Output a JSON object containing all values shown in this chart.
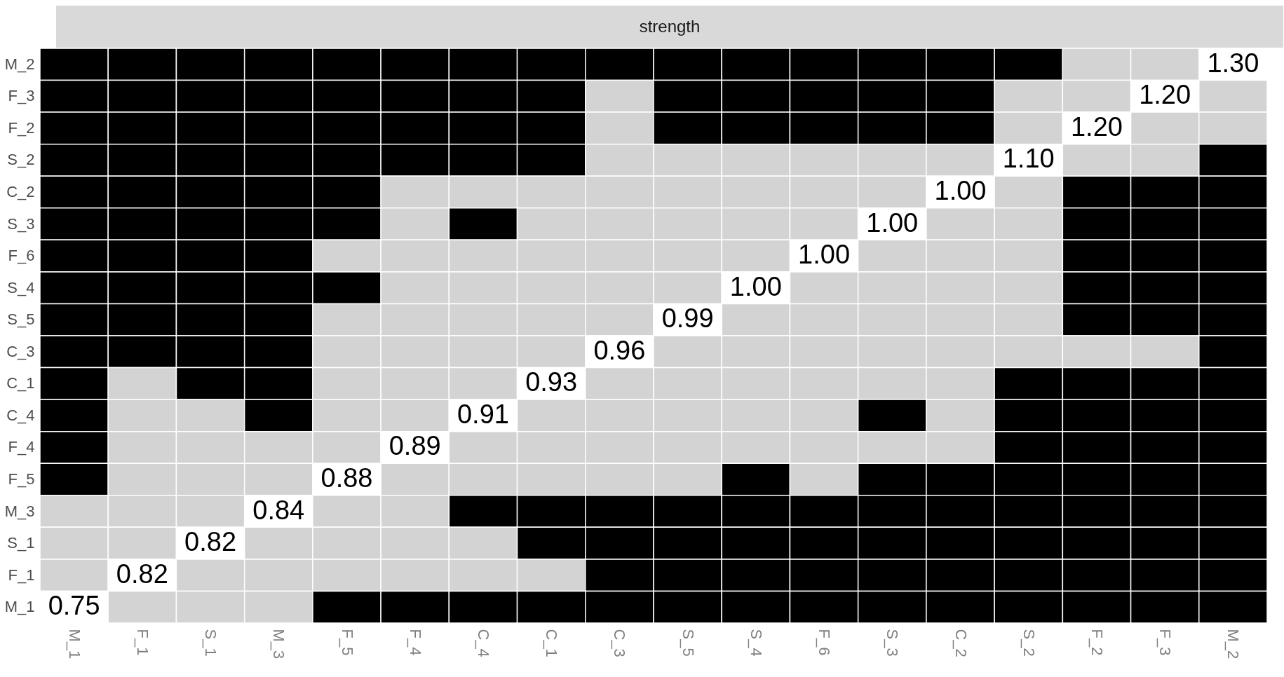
{
  "chart_data": {
    "type": "heatmap",
    "title": "strength",
    "categories": [
      "M_1",
      "F_1",
      "S_1",
      "M_3",
      "F_5",
      "F_4",
      "C_4",
      "C_1",
      "C_3",
      "S_5",
      "S_4",
      "F_6",
      "S_3",
      "C_2",
      "S_2",
      "F_2",
      "F_3",
      "M_2"
    ],
    "y_categories": [
      "M_2",
      "F_3",
      "F_2",
      "S_2",
      "C_2",
      "S_3",
      "F_6",
      "S_4",
      "S_5",
      "C_3",
      "C_1",
      "C_4",
      "F_4",
      "F_5",
      "M_3",
      "S_1",
      "F_1",
      "M_1"
    ],
    "colors": [
      [
        "#000000",
        "#000000",
        "#000000",
        "#000000",
        "#000000",
        "#000000",
        "#000000",
        "#000000",
        "#000000",
        "#000000",
        "#000000",
        "#000000",
        "#000000",
        "#000000",
        "#000000",
        "#d3d3d3",
        "#d3d3d3",
        "#ffffff"
      ],
      [
        "#000000",
        "#000000",
        "#000000",
        "#000000",
        "#000000",
        "#000000",
        "#000000",
        "#000000",
        "#d3d3d3",
        "#000000",
        "#000000",
        "#000000",
        "#000000",
        "#000000",
        "#d3d3d3",
        "#d3d3d3",
        "#ffffff",
        "#d3d3d3"
      ],
      [
        "#000000",
        "#000000",
        "#000000",
        "#000000",
        "#000000",
        "#000000",
        "#000000",
        "#000000",
        "#d3d3d3",
        "#000000",
        "#000000",
        "#000000",
        "#000000",
        "#000000",
        "#d3d3d3",
        "#ffffff",
        "#d3d3d3",
        "#d3d3d3"
      ],
      [
        "#000000",
        "#000000",
        "#000000",
        "#000000",
        "#000000",
        "#000000",
        "#000000",
        "#000000",
        "#d3d3d3",
        "#d3d3d3",
        "#d3d3d3",
        "#d3d3d3",
        "#d3d3d3",
        "#d3d3d3",
        "#ffffff",
        "#d3d3d3",
        "#d3d3d3",
        "#000000"
      ],
      [
        "#000000",
        "#000000",
        "#000000",
        "#000000",
        "#000000",
        "#d3d3d3",
        "#d3d3d3",
        "#d3d3d3",
        "#d3d3d3",
        "#d3d3d3",
        "#d3d3d3",
        "#d3d3d3",
        "#d3d3d3",
        "#ffffff",
        "#d3d3d3",
        "#000000",
        "#000000",
        "#000000"
      ],
      [
        "#000000",
        "#000000",
        "#000000",
        "#000000",
        "#000000",
        "#d3d3d3",
        "#000000",
        "#d3d3d3",
        "#d3d3d3",
        "#d3d3d3",
        "#d3d3d3",
        "#d3d3d3",
        "#ffffff",
        "#d3d3d3",
        "#d3d3d3",
        "#000000",
        "#000000",
        "#000000"
      ],
      [
        "#000000",
        "#000000",
        "#000000",
        "#000000",
        "#d3d3d3",
        "#d3d3d3",
        "#d3d3d3",
        "#d3d3d3",
        "#d3d3d3",
        "#d3d3d3",
        "#d3d3d3",
        "#ffffff",
        "#d3d3d3",
        "#d3d3d3",
        "#d3d3d3",
        "#000000",
        "#000000",
        "#000000"
      ],
      [
        "#000000",
        "#000000",
        "#000000",
        "#000000",
        "#000000",
        "#d3d3d3",
        "#d3d3d3",
        "#d3d3d3",
        "#d3d3d3",
        "#d3d3d3",
        "#ffffff",
        "#d3d3d3",
        "#d3d3d3",
        "#d3d3d3",
        "#d3d3d3",
        "#000000",
        "#000000",
        "#000000"
      ],
      [
        "#000000",
        "#000000",
        "#000000",
        "#000000",
        "#d3d3d3",
        "#d3d3d3",
        "#d3d3d3",
        "#d3d3d3",
        "#d3d3d3",
        "#ffffff",
        "#d3d3d3",
        "#d3d3d3",
        "#d3d3d3",
        "#d3d3d3",
        "#d3d3d3",
        "#000000",
        "#000000",
        "#000000"
      ],
      [
        "#000000",
        "#000000",
        "#000000",
        "#000000",
        "#d3d3d3",
        "#d3d3d3",
        "#d3d3d3",
        "#d3d3d3",
        "#ffffff",
        "#d3d3d3",
        "#d3d3d3",
        "#d3d3d3",
        "#d3d3d3",
        "#d3d3d3",
        "#d3d3d3",
        "#d3d3d3",
        "#d3d3d3",
        "#000000"
      ],
      [
        "#000000",
        "#d3d3d3",
        "#000000",
        "#000000",
        "#d3d3d3",
        "#d3d3d3",
        "#d3d3d3",
        "#ffffff",
        "#d3d3d3",
        "#d3d3d3",
        "#d3d3d3",
        "#d3d3d3",
        "#d3d3d3",
        "#d3d3d3",
        "#000000",
        "#000000",
        "#000000",
        "#000000"
      ],
      [
        "#000000",
        "#d3d3d3",
        "#d3d3d3",
        "#000000",
        "#d3d3d3",
        "#d3d3d3",
        "#ffffff",
        "#d3d3d3",
        "#d3d3d3",
        "#d3d3d3",
        "#d3d3d3",
        "#d3d3d3",
        "#000000",
        "#d3d3d3",
        "#000000",
        "#000000",
        "#000000",
        "#000000"
      ],
      [
        "#000000",
        "#d3d3d3",
        "#d3d3d3",
        "#d3d3d3",
        "#d3d3d3",
        "#ffffff",
        "#d3d3d3",
        "#d3d3d3",
        "#d3d3d3",
        "#d3d3d3",
        "#d3d3d3",
        "#d3d3d3",
        "#d3d3d3",
        "#d3d3d3",
        "#000000",
        "#000000",
        "#000000",
        "#000000"
      ],
      [
        "#000000",
        "#d3d3d3",
        "#d3d3d3",
        "#d3d3d3",
        "#ffffff",
        "#d3d3d3",
        "#d3d3d3",
        "#d3d3d3",
        "#d3d3d3",
        "#d3d3d3",
        "#000000",
        "#d3d3d3",
        "#000000",
        "#000000",
        "#000000",
        "#000000",
        "#000000",
        "#000000"
      ],
      [
        "#d3d3d3",
        "#d3d3d3",
        "#d3d3d3",
        "#ffffff",
        "#d3d3d3",
        "#d3d3d3",
        "#000000",
        "#000000",
        "#000000",
        "#000000",
        "#000000",
        "#000000",
        "#000000",
        "#000000",
        "#000000",
        "#000000",
        "#000000",
        "#000000"
      ],
      [
        "#d3d3d3",
        "#d3d3d3",
        "#ffffff",
        "#d3d3d3",
        "#d3d3d3",
        "#d3d3d3",
        "#d3d3d3",
        "#000000",
        "#000000",
        "#000000",
        "#000000",
        "#000000",
        "#000000",
        "#000000",
        "#000000",
        "#000000",
        "#000000",
        "#000000"
      ],
      [
        "#d3d3d3",
        "#ffffff",
        "#d3d3d3",
        "#d3d3d3",
        "#d3d3d3",
        "#d3d3d3",
        "#d3d3d3",
        "#d3d3d3",
        "#000000",
        "#000000",
        "#000000",
        "#000000",
        "#000000",
        "#000000",
        "#000000",
        "#000000",
        "#000000",
        "#000000"
      ],
      [
        "#ffffff",
        "#d3d3d3",
        "#d3d3d3",
        "#d3d3d3",
        "#000000",
        "#000000",
        "#000000",
        "#000000",
        "#000000",
        "#000000",
        "#000000",
        "#000000",
        "#000000",
        "#000000",
        "#000000",
        "#000000",
        "#000000",
        "#000000"
      ]
    ],
    "cells": [
      [
        null,
        null,
        null,
        null,
        null,
        null,
        null,
        null,
        null,
        null,
        null,
        null,
        null,
        null,
        null,
        null,
        null,
        1.3
      ],
      [
        null,
        null,
        null,
        null,
        null,
        null,
        null,
        null,
        null,
        null,
        null,
        null,
        null,
        null,
        null,
        null,
        1.2,
        null
      ],
      [
        null,
        null,
        null,
        null,
        null,
        null,
        null,
        null,
        null,
        null,
        null,
        null,
        null,
        null,
        null,
        1.2,
        null,
        null
      ],
      [
        null,
        null,
        null,
        null,
        null,
        null,
        null,
        null,
        null,
        null,
        null,
        null,
        null,
        null,
        1.1,
        null,
        null,
        null
      ],
      [
        null,
        null,
        null,
        null,
        null,
        null,
        null,
        null,
        null,
        null,
        null,
        null,
        null,
        1.0,
        null,
        null,
        null,
        null
      ],
      [
        null,
        null,
        null,
        null,
        null,
        null,
        null,
        null,
        null,
        null,
        null,
        null,
        1.0,
        null,
        null,
        null,
        null,
        null
      ],
      [
        null,
        null,
        null,
        null,
        null,
        null,
        null,
        null,
        null,
        null,
        null,
        1.0,
        null,
        null,
        null,
        null,
        null,
        null
      ],
      [
        null,
        null,
        null,
        null,
        null,
        null,
        null,
        null,
        null,
        null,
        1.0,
        null,
        null,
        null,
        null,
        null,
        null,
        null
      ],
      [
        null,
        null,
        null,
        null,
        null,
        null,
        null,
        null,
        null,
        0.99,
        null,
        null,
        null,
        null,
        null,
        null,
        null,
        null
      ],
      [
        null,
        null,
        null,
        null,
        null,
        null,
        null,
        null,
        0.96,
        null,
        null,
        null,
        null,
        null,
        null,
        null,
        null,
        null
      ],
      [
        null,
        null,
        null,
        null,
        null,
        null,
        null,
        0.93,
        null,
        null,
        null,
        null,
        null,
        null,
        null,
        null,
        null,
        null
      ],
      [
        null,
        null,
        null,
        null,
        null,
        null,
        0.91,
        null,
        null,
        null,
        null,
        null,
        null,
        null,
        null,
        null,
        null,
        null
      ],
      [
        null,
        null,
        null,
        null,
        null,
        0.89,
        null,
        null,
        null,
        null,
        null,
        null,
        null,
        null,
        null,
        null,
        null,
        null
      ],
      [
        null,
        null,
        null,
        null,
        0.88,
        null,
        null,
        null,
        null,
        null,
        null,
        null,
        null,
        null,
        null,
        null,
        null,
        null
      ],
      [
        null,
        null,
        null,
        0.84,
        null,
        null,
        null,
        null,
        null,
        null,
        null,
        null,
        null,
        null,
        null,
        null,
        null,
        null
      ],
      [
        null,
        null,
        0.82,
        null,
        null,
        null,
        null,
        null,
        null,
        null,
        null,
        null,
        null,
        null,
        null,
        null,
        null,
        null
      ],
      [
        null,
        0.82,
        null,
        null,
        null,
        null,
        null,
        null,
        null,
        null,
        null,
        null,
        null,
        null,
        null,
        null,
        null,
        null
      ],
      [
        0.75,
        null,
        null,
        null,
        null,
        null,
        null,
        null,
        null,
        null,
        null,
        null,
        null,
        null,
        null,
        null,
        null,
        null
      ]
    ],
    "cell_labels": [
      [
        null,
        null,
        null,
        null,
        null,
        null,
        null,
        null,
        null,
        null,
        null,
        null,
        null,
        null,
        null,
        null,
        null,
        "1.30"
      ],
      [
        null,
        null,
        null,
        null,
        null,
        null,
        null,
        null,
        null,
        null,
        null,
        null,
        null,
        null,
        null,
        null,
        "1.20",
        null
      ],
      [
        null,
        null,
        null,
        null,
        null,
        null,
        null,
        null,
        null,
        null,
        null,
        null,
        null,
        null,
        null,
        "1.20",
        null,
        null
      ],
      [
        null,
        null,
        null,
        null,
        null,
        null,
        null,
        null,
        null,
        null,
        null,
        null,
        null,
        null,
        "1.10",
        null,
        null,
        null
      ],
      [
        null,
        null,
        null,
        null,
        null,
        null,
        null,
        null,
        null,
        null,
        null,
        null,
        null,
        "1.00",
        null,
        null,
        null,
        null
      ],
      [
        null,
        null,
        null,
        null,
        null,
        null,
        null,
        null,
        null,
        null,
        null,
        null,
        "1.00",
        null,
        null,
        null,
        null,
        null
      ],
      [
        null,
        null,
        null,
        null,
        null,
        null,
        null,
        null,
        null,
        null,
        null,
        "1.00",
        null,
        null,
        null,
        null,
        null,
        null
      ],
      [
        null,
        null,
        null,
        null,
        null,
        null,
        null,
        null,
        null,
        null,
        "1.00",
        null,
        null,
        null,
        null,
        null,
        null,
        null
      ],
      [
        null,
        null,
        null,
        null,
        null,
        null,
        null,
        null,
        null,
        "0.99",
        null,
        null,
        null,
        null,
        null,
        null,
        null,
        null
      ],
      [
        null,
        null,
        null,
        null,
        null,
        null,
        null,
        null,
        "0.96",
        null,
        null,
        null,
        null,
        null,
        null,
        null,
        null,
        null
      ],
      [
        null,
        null,
        null,
        null,
        null,
        null,
        null,
        "0.93",
        null,
        null,
        null,
        null,
        null,
        null,
        null,
        null,
        null,
        null
      ],
      [
        null,
        null,
        null,
        null,
        null,
        null,
        "0.91",
        null,
        null,
        null,
        null,
        null,
        null,
        null,
        null,
        null,
        null,
        null
      ],
      [
        null,
        null,
        null,
        null,
        null,
        "0.89",
        null,
        null,
        null,
        null,
        null,
        null,
        null,
        null,
        null,
        null,
        null,
        null
      ],
      [
        null,
        null,
        null,
        null,
        "0.88",
        null,
        null,
        null,
        null,
        null,
        null,
        null,
        null,
        null,
        null,
        null,
        null,
        null
      ],
      [
        null,
        null,
        null,
        "0.84",
        null,
        null,
        null,
        null,
        null,
        null,
        null,
        null,
        null,
        null,
        null,
        null,
        null,
        null
      ],
      [
        null,
        null,
        "0.82",
        null,
        null,
        null,
        null,
        null,
        null,
        null,
        null,
        null,
        null,
        null,
        null,
        null,
        null,
        null
      ],
      [
        null,
        "0.82",
        null,
        null,
        null,
        null,
        null,
        null,
        null,
        null,
        null,
        null,
        null,
        null,
        null,
        null,
        null,
        null
      ],
      [
        "0.75",
        null,
        null,
        null,
        null,
        null,
        null,
        null,
        null,
        null,
        null,
        null,
        null,
        null,
        null,
        null,
        null,
        null
      ]
    ]
  }
}
